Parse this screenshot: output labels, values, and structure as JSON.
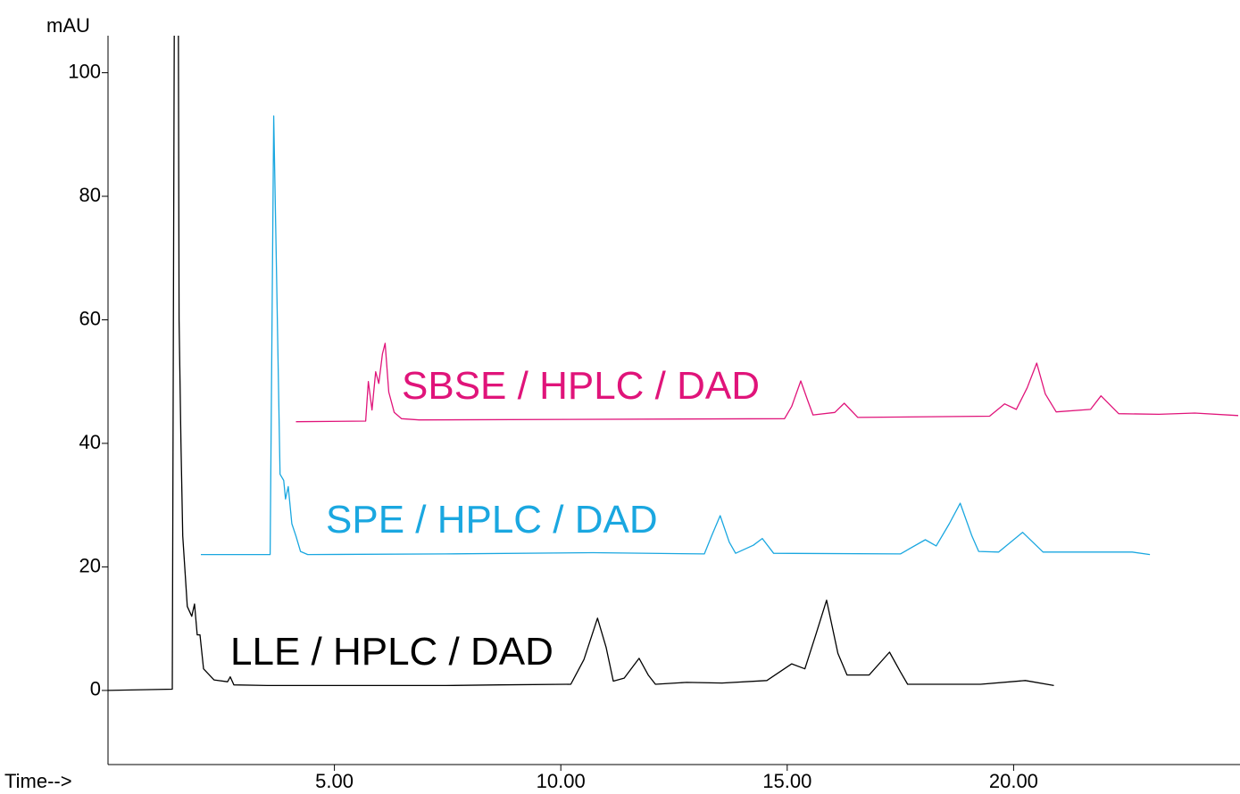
{
  "chart_data": {
    "type": "line",
    "ylabel": "mAU",
    "xlabel": "Time-->",
    "xlim": [
      0,
      25
    ],
    "ylim": [
      -12,
      106
    ],
    "xticks": [
      {
        "value": 5,
        "label": "5.00"
      },
      {
        "value": 10,
        "label": "10.00"
      },
      {
        "value": 15,
        "label": "15.00"
      },
      {
        "value": 20,
        "label": "20.00"
      }
    ],
    "yticks": [
      0,
      20,
      40,
      60,
      80,
      100
    ],
    "series": [
      {
        "name": "LLE / HPLC / DAD",
        "color": "#000000",
        "x": [
          0.0,
          1.42,
          1.48,
          1.54,
          1.57,
          1.61,
          1.65,
          1.75,
          1.85,
          1.91,
          1.97,
          2.03,
          2.11,
          2.34,
          2.64,
          2.7,
          2.78,
          3.52,
          5.49,
          7.46,
          8.64,
          10.22,
          10.51,
          10.81,
          11.0,
          11.16,
          11.4,
          11.73,
          11.93,
          12.09,
          12.78,
          13.56,
          14.55,
          15.1,
          15.39,
          15.63,
          15.87,
          16.12,
          16.32,
          16.81,
          17.26,
          17.5,
          17.66,
          19.27,
          20.26,
          20.89
        ],
        "values": [
          0,
          0.2,
          150,
          150,
          60,
          40,
          25,
          13.6,
          12,
          14,
          9,
          9,
          3.5,
          1.7,
          1.4,
          2.2,
          0.9,
          0.8,
          0.8,
          0.8,
          0.9,
          1.0,
          5,
          11.7,
          7,
          1.5,
          2,
          5.2,
          2.5,
          1.0,
          1.3,
          1.2,
          1.6,
          4.3,
          3.5,
          9,
          14.6,
          6,
          2.5,
          2.5,
          6.2,
          3,
          1.0,
          1.0,
          1.6,
          0.8
        ]
      },
      {
        "name": "SPE / HPLC / DAD",
        "color": "#1aa7e0",
        "x": [
          2.05,
          3.58,
          3.66,
          3.72,
          3.8,
          3.88,
          3.92,
          3.98,
          4.06,
          4.15,
          4.25,
          4.41,
          7.46,
          10.71,
          13.17,
          13.33,
          13.52,
          13.72,
          13.86,
          14.25,
          14.45,
          14.7,
          17.5,
          18.05,
          18.29,
          18.58,
          18.82,
          19.08,
          19.23,
          19.67,
          20.2,
          20.65,
          22.62,
          23.01
        ],
        "values": [
          22,
          22,
          93,
          68,
          35,
          34,
          31,
          33,
          27,
          25,
          22.5,
          22,
          22.1,
          22.3,
          22.1,
          25,
          28.3,
          24,
          22.2,
          23.5,
          24.6,
          22.2,
          22.1,
          24.4,
          23.4,
          27,
          30.3,
          25,
          22.5,
          22.4,
          25.6,
          22.4,
          22.4,
          22.0
        ]
      },
      {
        "name": "SBSE / HPLC / DAD",
        "color": "#e0147a",
        "x": [
          4.15,
          5.69,
          5.75,
          5.83,
          5.91,
          5.98,
          6.06,
          6.12,
          6.2,
          6.32,
          6.48,
          6.87,
          14.94,
          15.1,
          15.3,
          15.45,
          15.57,
          16.05,
          16.26,
          16.56,
          19.47,
          19.8,
          20.06,
          20.3,
          20.51,
          20.7,
          20.94,
          21.7,
          21.93,
          22.32,
          23.21,
          24.0,
          24.96
        ],
        "values": [
          43.5,
          43.6,
          50,
          45.4,
          51.6,
          49.7,
          54.5,
          56.2,
          48.3,
          45,
          44,
          43.8,
          44.0,
          46,
          50.1,
          47,
          44.6,
          45,
          46.5,
          44.2,
          44.4,
          46.4,
          45.5,
          49,
          53,
          48,
          45.1,
          45.5,
          47.7,
          44.8,
          44.7,
          44.9,
          44.5
        ]
      }
    ]
  }
}
